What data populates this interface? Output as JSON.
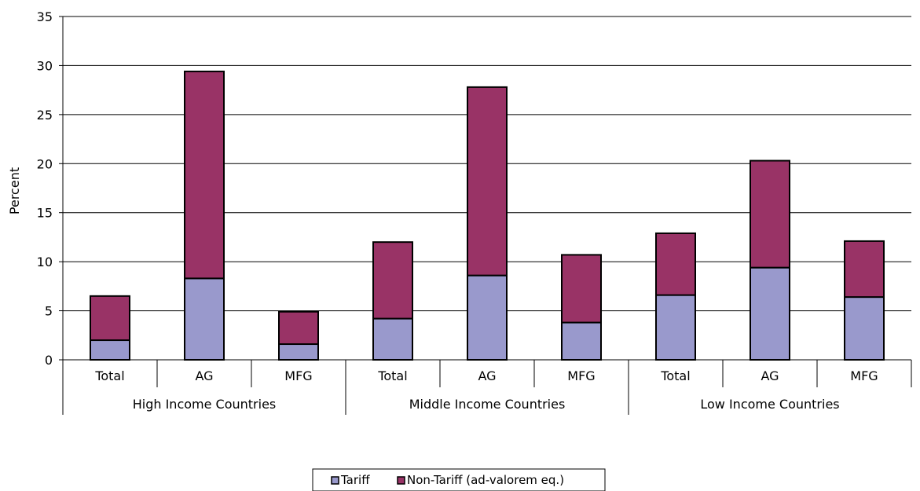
{
  "chart_data": {
    "type": "bar",
    "stacked": true,
    "title": "",
    "xlabel": "",
    "ylabel": "Percent",
    "ylim": [
      0,
      35
    ],
    "yticks": [
      "0",
      "5",
      "10",
      "15",
      "20",
      "25",
      "30",
      "35"
    ],
    "grid": "horizontal",
    "legend_position": "bottom",
    "groups": [
      {
        "label": "High Income Countries",
        "categories": [
          "Total",
          "AG",
          "MFG"
        ]
      },
      {
        "label": "Middle Income Countries",
        "categories": [
          "Total",
          "AG",
          "MFG"
        ]
      },
      {
        "label": "Low Income Countries",
        "categories": [
          "Total",
          "AG",
          "MFG"
        ]
      }
    ],
    "series": [
      {
        "name": "Tariff",
        "color": "#9999cc",
        "values": [
          2.0,
          8.3,
          1.6,
          4.2,
          8.6,
          3.8,
          6.6,
          9.4,
          6.4
        ]
      },
      {
        "name": "Non-Tariff (ad-valorem eq.)",
        "color": "#993366",
        "values": [
          4.5,
          21.1,
          3.3,
          7.8,
          19.2,
          6.9,
          6.3,
          10.9,
          5.7
        ]
      }
    ]
  }
}
